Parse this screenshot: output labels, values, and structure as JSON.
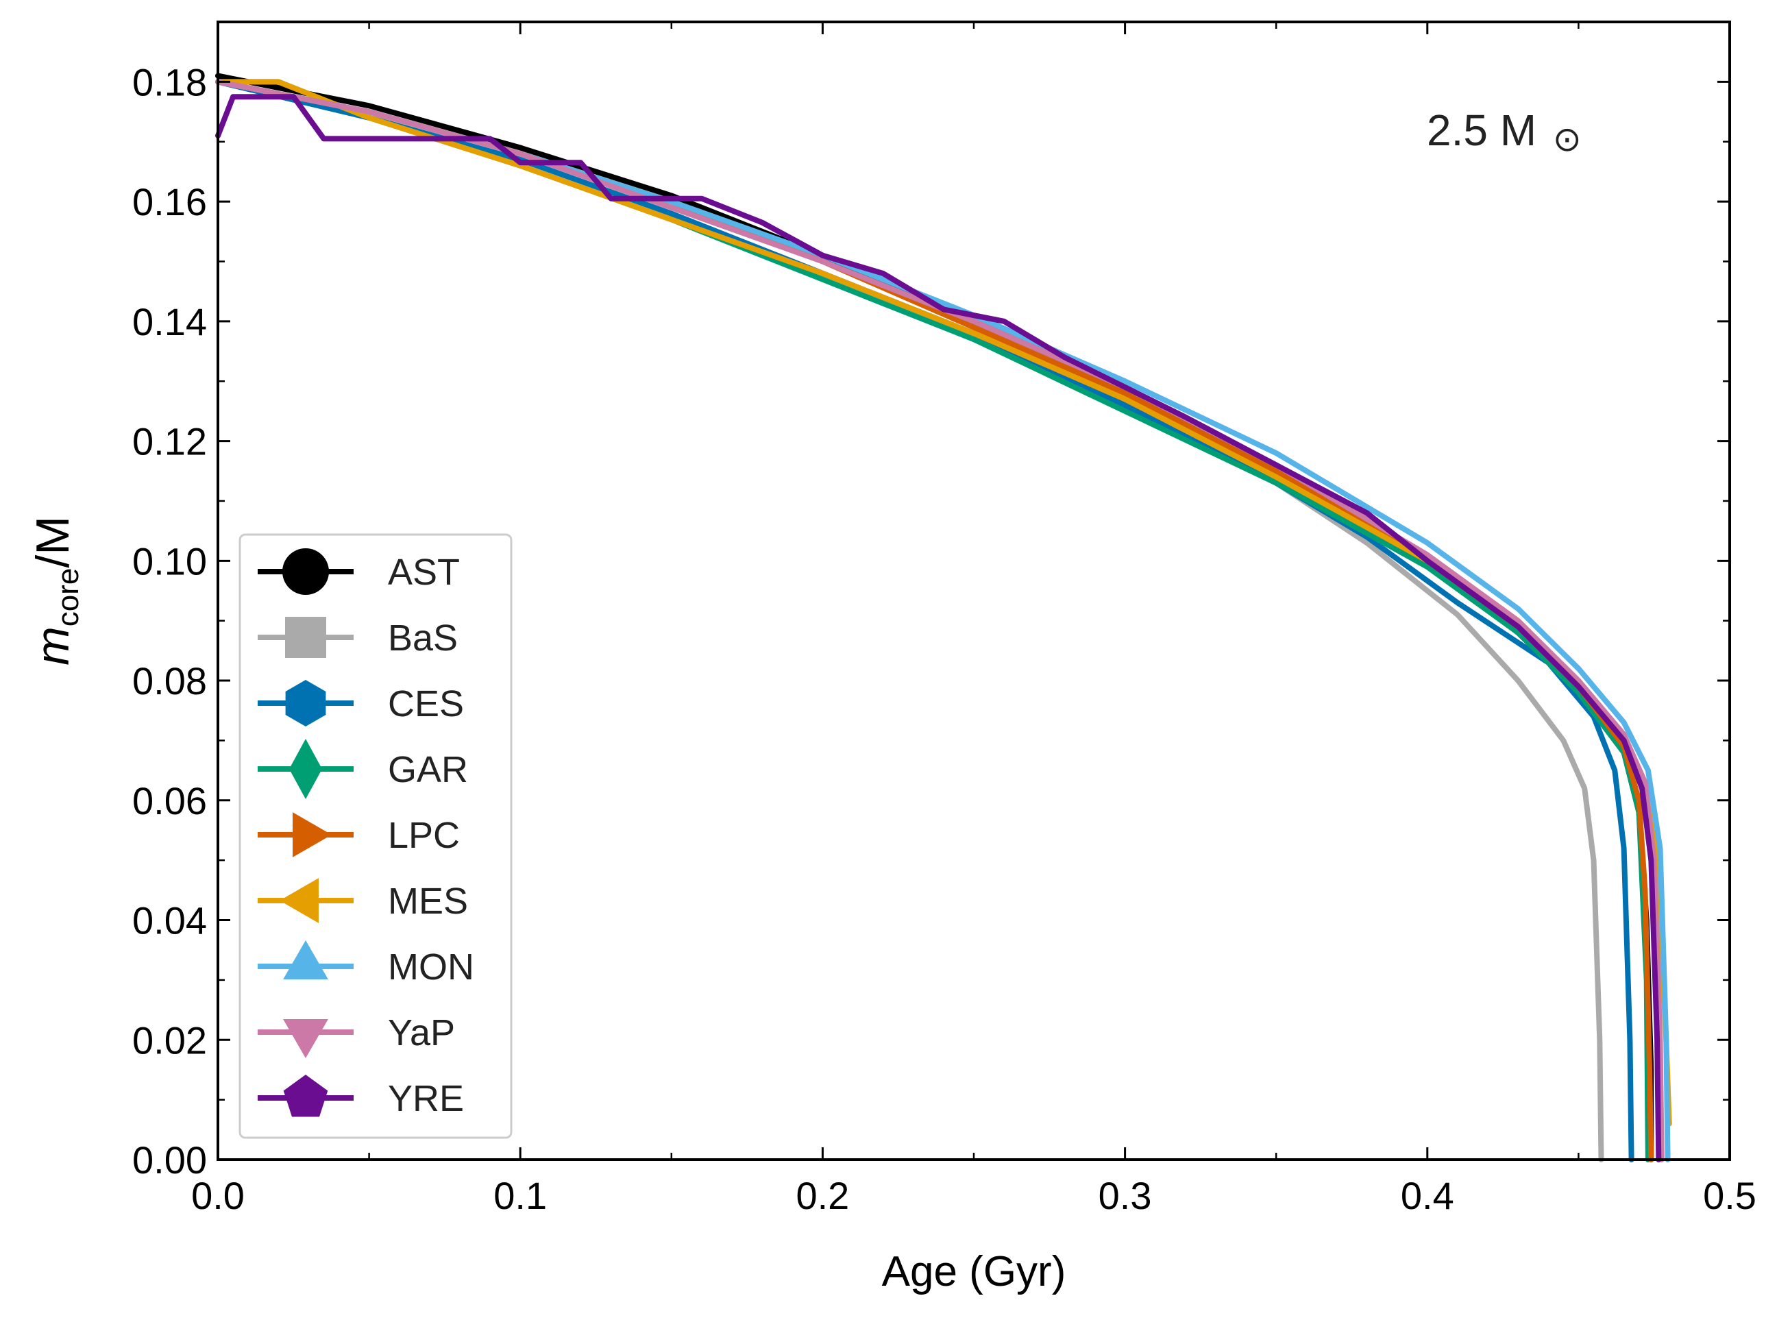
{
  "chart_data": {
    "type": "line",
    "title": "",
    "annotation": {
      "text": "2.5 M",
      "symbol": "⊙"
    },
    "xlabel": "Age (Gyr)",
    "ylabel": {
      "main": "m",
      "subscript": "core",
      "suffix": "/M"
    },
    "xlim": [
      0.0,
      0.5
    ],
    "ylim": [
      0.0,
      0.19
    ],
    "xticks": [
      {
        "value": 0.0,
        "label": "0.0"
      },
      {
        "value": 0.1,
        "label": "0.1"
      },
      {
        "value": 0.2,
        "label": "0.2"
      },
      {
        "value": 0.3,
        "label": "0.3"
      },
      {
        "value": 0.4,
        "label": "0.4"
      },
      {
        "value": 0.5,
        "label": "0.5"
      }
    ],
    "yticks": [
      {
        "value": 0.0,
        "label": "0.00"
      },
      {
        "value": 0.02,
        "label": "0.02"
      },
      {
        "value": 0.04,
        "label": "0.04"
      },
      {
        "value": 0.06,
        "label": "0.06"
      },
      {
        "value": 0.08,
        "label": "0.08"
      },
      {
        "value": 0.1,
        "label": "0.10"
      },
      {
        "value": 0.12,
        "label": "0.12"
      },
      {
        "value": 0.14,
        "label": "0.14"
      },
      {
        "value": 0.16,
        "label": "0.16"
      },
      {
        "value": 0.18,
        "label": "0.18"
      }
    ],
    "grid": false,
    "legend_position": "lower-left",
    "series": [
      {
        "name": "AST",
        "color": "#000000",
        "marker": "circle",
        "x": [
          0.0,
          0.05,
          0.1,
          0.15,
          0.2,
          0.25,
          0.3,
          0.35,
          0.4,
          0.43,
          0.45,
          0.465,
          0.47,
          0.4725,
          0.474,
          0.474
        ],
        "y": [
          0.181,
          0.176,
          0.169,
          0.161,
          0.151,
          0.14,
          0.129,
          0.116,
          0.1,
          0.088,
          0.078,
          0.068,
          0.058,
          0.04,
          0.015,
          0.0
        ]
      },
      {
        "name": "BaS",
        "color": "#aaaaaa",
        "marker": "square",
        "x": [
          0.0,
          0.05,
          0.1,
          0.15,
          0.2,
          0.25,
          0.3,
          0.35,
          0.38,
          0.41,
          0.43,
          0.445,
          0.452,
          0.455,
          0.457,
          0.4575
        ],
        "y": [
          0.18,
          0.174,
          0.167,
          0.158,
          0.148,
          0.138,
          0.126,
          0.113,
          0.103,
          0.091,
          0.08,
          0.07,
          0.062,
          0.05,
          0.02,
          0.0
        ]
      },
      {
        "name": "CES",
        "color": "#0072b2",
        "marker": "hexagon",
        "x": [
          0.0,
          0.05,
          0.1,
          0.15,
          0.2,
          0.25,
          0.3,
          0.35,
          0.38,
          0.41,
          0.44,
          0.455,
          0.462,
          0.465,
          0.467,
          0.4675
        ],
        "y": [
          0.18,
          0.174,
          0.167,
          0.158,
          0.148,
          0.138,
          0.126,
          0.113,
          0.104,
          0.093,
          0.083,
          0.074,
          0.065,
          0.052,
          0.02,
          0.0
        ]
      },
      {
        "name": "GAR",
        "color": "#009e73",
        "marker": "diamond",
        "x": [
          0.0,
          0.02,
          0.05,
          0.1,
          0.15,
          0.2,
          0.25,
          0.3,
          0.35,
          0.4,
          0.43,
          0.45,
          0.465,
          0.47,
          0.4725,
          0.473
        ],
        "y": [
          0.18,
          0.18,
          0.174,
          0.166,
          0.157,
          0.147,
          0.137,
          0.125,
          0.113,
          0.099,
          0.088,
          0.078,
          0.068,
          0.058,
          0.03,
          0.0
        ]
      },
      {
        "name": "LPC",
        "color": "#d55e00",
        "marker": "triangle-right",
        "x": [
          0.0,
          0.05,
          0.1,
          0.15,
          0.2,
          0.25,
          0.3,
          0.35,
          0.4,
          0.43,
          0.45,
          0.465,
          0.47,
          0.472,
          0.4735,
          0.474
        ],
        "y": [
          0.18,
          0.175,
          0.168,
          0.16,
          0.15,
          0.139,
          0.128,
          0.115,
          0.1,
          0.089,
          0.079,
          0.069,
          0.06,
          0.045,
          0.015,
          0.0
        ]
      },
      {
        "name": "MES",
        "color": "#e69f00",
        "marker": "triangle-left",
        "x": [
          0.0,
          0.02,
          0.05,
          0.1,
          0.15,
          0.2,
          0.25,
          0.3,
          0.35,
          0.4,
          0.43,
          0.45,
          0.465,
          0.472,
          0.476,
          0.479,
          0.48
        ],
        "y": [
          0.18,
          0.18,
          0.174,
          0.166,
          0.157,
          0.148,
          0.138,
          0.127,
          0.114,
          0.1,
          0.089,
          0.079,
          0.07,
          0.062,
          0.05,
          0.02,
          0.006
        ]
      },
      {
        "name": "MON",
        "color": "#56b4e9",
        "marker": "triangle-up",
        "x": [
          0.0,
          0.05,
          0.1,
          0.15,
          0.2,
          0.25,
          0.3,
          0.35,
          0.4,
          0.43,
          0.45,
          0.465,
          0.473,
          0.477,
          0.479,
          0.4795
        ],
        "y": [
          0.18,
          0.175,
          0.168,
          0.16,
          0.151,
          0.141,
          0.13,
          0.118,
          0.103,
          0.092,
          0.082,
          0.073,
          0.065,
          0.052,
          0.02,
          0.0
        ]
      },
      {
        "name": "YaP",
        "color": "#cc79a7",
        "marker": "triangle-down",
        "x": [
          0.0,
          0.05,
          0.1,
          0.15,
          0.2,
          0.25,
          0.3,
          0.35,
          0.4,
          0.43,
          0.45,
          0.465,
          0.472,
          0.475,
          0.477,
          0.4775
        ],
        "y": [
          0.18,
          0.175,
          0.168,
          0.159,
          0.15,
          0.14,
          0.129,
          0.116,
          0.101,
          0.09,
          0.08,
          0.071,
          0.063,
          0.05,
          0.02,
          0.0
        ]
      },
      {
        "name": "YRE",
        "color": "#6a0d91",
        "marker": "pentagon",
        "x": [
          0.0,
          0.005,
          0.025,
          0.035,
          0.09,
          0.1,
          0.12,
          0.13,
          0.16,
          0.18,
          0.2,
          0.22,
          0.24,
          0.26,
          0.28,
          0.3,
          0.32,
          0.35,
          0.38,
          0.4,
          0.43,
          0.45,
          0.465,
          0.471,
          0.474,
          0.476,
          0.4765
        ],
        "y": [
          0.171,
          0.1775,
          0.1775,
          0.1705,
          0.1705,
          0.1665,
          0.1665,
          0.1605,
          0.1605,
          0.1565,
          0.151,
          0.148,
          0.142,
          0.14,
          0.134,
          0.129,
          0.124,
          0.116,
          0.108,
          0.1,
          0.089,
          0.079,
          0.07,
          0.062,
          0.05,
          0.02,
          0.0
        ]
      }
    ]
  }
}
